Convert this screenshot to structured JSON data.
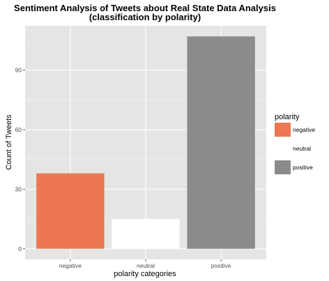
{
  "chart_data": {
    "type": "bar",
    "title": "Sentiment Analysis of Tweets about Real State Data Analysis",
    "subtitle": "(classification by polarity)",
    "xlabel": "polarity categories",
    "ylabel": "Count of Tweets",
    "categories": [
      "negative",
      "neutral",
      "positive"
    ],
    "values": [
      38,
      15,
      107
    ],
    "colors": [
      "#EC7752",
      "#FFFFFF",
      "#8B8B8B"
    ],
    "yticks": [
      0,
      30,
      60,
      90
    ],
    "ylim": [
      -5.35,
      112.35
    ],
    "grid": true,
    "panel_background": "#E5E5E5",
    "legend": {
      "title": "polarity",
      "position": "right",
      "entries": [
        {
          "label": "negative",
          "color": "#EC7752"
        },
        {
          "label": "neutral",
          "color": "#FFFFFF"
        },
        {
          "label": "positive",
          "color": "#8B8B8B"
        }
      ]
    }
  }
}
